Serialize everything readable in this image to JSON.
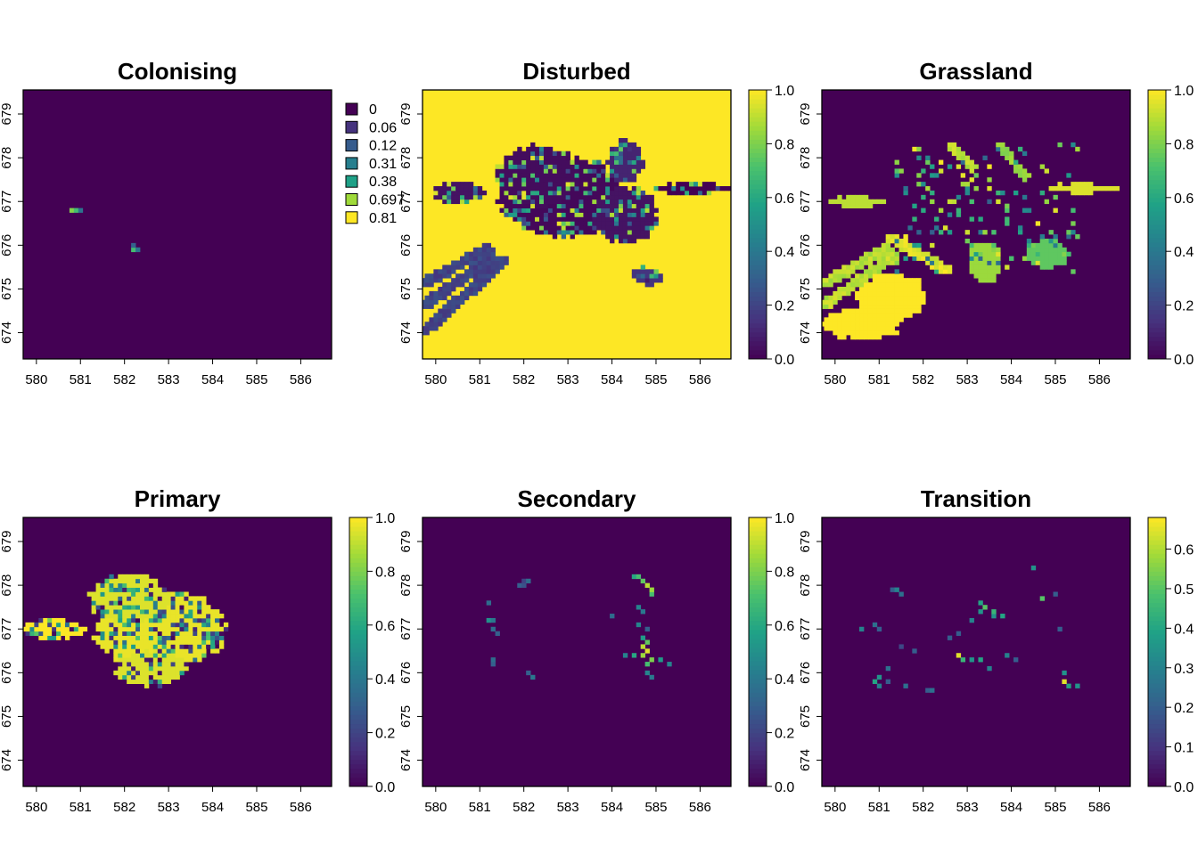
{
  "palette": [
    "#440154",
    "#46337E",
    "#365C8D",
    "#277F8E",
    "#1FA187",
    "#4AC16D",
    "#9FDA3A",
    "#FDE725"
  ],
  "chart_data": [
    {
      "type": "heatmap",
      "title": "Colonising",
      "xlim": [
        579.7,
        586.7
      ],
      "ylim": [
        673.4,
        679.55
      ],
      "xticks": [
        "580",
        "581",
        "582",
        "583",
        "584",
        "585",
        "586"
      ],
      "yticks": [
        "674",
        "675",
        "676",
        "677",
        "678",
        "679"
      ],
      "legend": {
        "kind": "categorical",
        "labels": [
          "0",
          "0.06",
          "0.12",
          "0.31",
          "0.38",
          "0.697",
          "0.81"
        ],
        "colors": [
          "#440154",
          "#46337E",
          "#365C8D",
          "#277F8E",
          "#1FA187",
          "#9FDA3A",
          "#FDE725"
        ]
      },
      "background": 0,
      "cells": [
        [
          580.8,
          676.8,
          0.81
        ],
        [
          580.9,
          676.8,
          0.697
        ],
        [
          581.0,
          676.8,
          0.38
        ],
        [
          582.2,
          676.0,
          0.31
        ],
        [
          582.2,
          675.9,
          0.697
        ],
        [
          582.3,
          675.9,
          0.38
        ]
      ]
    },
    {
      "type": "heatmap",
      "title": "Disturbed",
      "xlim": [
        579.7,
        586.7
      ],
      "ylim": [
        673.4,
        679.55
      ],
      "xticks": [
        "580",
        "581",
        "582",
        "583",
        "584",
        "585",
        "586"
      ],
      "yticks": [
        "674",
        "675",
        "676",
        "677",
        "678",
        "679"
      ],
      "legend": {
        "kind": "continuous",
        "ticks": [
          "0.0",
          "0.2",
          "0.4",
          "0.6",
          "0.8",
          "1.0"
        ],
        "max": 1.0
      },
      "background": 1.0,
      "blobs": [
        {
          "cx": 582.9,
          "cy": 677.1,
          "rx": 1.45,
          "ry": 0.9,
          "v": 0.02
        },
        {
          "cx": 582.3,
          "cy": 677.6,
          "rx": 0.9,
          "ry": 0.7,
          "v": 0.03
        },
        {
          "cx": 584.3,
          "cy": 676.7,
          "rx": 0.7,
          "ry": 0.65,
          "v": 0.05
        },
        {
          "cx": 584.3,
          "cy": 677.9,
          "rx": 0.4,
          "ry": 0.5,
          "v": 0.1
        },
        {
          "cx": 580.5,
          "cy": 677.2,
          "rx": 0.6,
          "ry": 0.25,
          "v": 0.05
        },
        {
          "cx": 585.8,
          "cy": 677.3,
          "rx": 0.9,
          "ry": 0.12,
          "v": 0.0
        },
        {
          "cx": 584.8,
          "cy": 675.3,
          "rx": 0.35,
          "ry": 0.2,
          "v": 0.15
        }
      ],
      "stripes": [
        {
          "x0": 579.7,
          "y0": 675.1,
          "x1": 581.3,
          "y1": 676.0,
          "w": 0.13,
          "v": 0.15
        },
        {
          "x0": 579.7,
          "y0": 674.6,
          "x1": 581.4,
          "y1": 675.8,
          "w": 0.13,
          "v": 0.15
        },
        {
          "x0": 579.7,
          "y0": 674.0,
          "x1": 581.6,
          "y1": 675.7,
          "w": 0.13,
          "v": 0.15
        }
      ],
      "noise": 0.28
    },
    {
      "type": "heatmap",
      "title": "Grassland",
      "xlim": [
        579.7,
        586.7
      ],
      "ylim": [
        673.4,
        679.55
      ],
      "xticks": [
        "580",
        "581",
        "582",
        "583",
        "584",
        "585",
        "586"
      ],
      "yticks": [
        "674",
        "675",
        "676",
        "677",
        "678",
        "679"
      ],
      "legend": {
        "kind": "continuous",
        "ticks": [
          "0.0",
          "0.2",
          "0.4",
          "0.6",
          "0.8",
          "1.0"
        ],
        "max": 1.0
      },
      "background": 0,
      "blobs": [
        {
          "cx": 581.3,
          "cy": 674.8,
          "rx": 0.8,
          "ry": 0.55,
          "v": 1.0
        },
        {
          "cx": 580.6,
          "cy": 674.2,
          "rx": 0.9,
          "ry": 0.35,
          "v": 1.0
        },
        {
          "cx": 583.4,
          "cy": 675.6,
          "rx": 0.35,
          "ry": 0.5,
          "v": 0.85
        },
        {
          "cx": 584.8,
          "cy": 675.8,
          "rx": 0.45,
          "ry": 0.35,
          "v": 0.75
        },
        {
          "cx": 585.6,
          "cy": 677.3,
          "rx": 0.8,
          "ry": 0.1,
          "v": 0.95
        },
        {
          "cx": 580.5,
          "cy": 677.0,
          "rx": 0.6,
          "ry": 0.12,
          "v": 0.9
        }
      ],
      "stripes": [
        {
          "x0": 579.7,
          "y0": 675.1,
          "x1": 581.3,
          "y1": 676.0,
          "w": 0.12,
          "v": 0.85
        },
        {
          "x0": 579.7,
          "y0": 674.6,
          "x1": 581.4,
          "y1": 675.8,
          "w": 0.12,
          "v": 0.85
        },
        {
          "x0": 581.2,
          "y0": 676.2,
          "x1": 582.6,
          "y1": 675.4,
          "w": 0.12,
          "v": 0.9
        },
        {
          "x0": 582.6,
          "y0": 678.3,
          "x1": 583.2,
          "y1": 677.7,
          "w": 0.12,
          "v": 0.85
        },
        {
          "x0": 583.7,
          "y0": 678.3,
          "x1": 584.4,
          "y1": 677.5,
          "w": 0.1,
          "v": 0.8
        }
      ],
      "sparse": 0.12
    },
    {
      "type": "heatmap",
      "title": "Primary",
      "xlim": [
        579.7,
        586.7
      ],
      "ylim": [
        673.4,
        679.55
      ],
      "xticks": [
        "580",
        "581",
        "582",
        "583",
        "584",
        "585",
        "586"
      ],
      "yticks": [
        "674",
        "675",
        "676",
        "677",
        "678",
        "679"
      ],
      "legend": {
        "kind": "continuous",
        "ticks": [
          "0.0",
          "0.2",
          "0.4",
          "0.6",
          "0.8",
          "1.0"
        ],
        "max": 1.0
      },
      "background": 0,
      "blobs": [
        {
          "cx": 582.8,
          "cy": 677.0,
          "rx": 1.5,
          "ry": 0.85,
          "v": 0.97
        },
        {
          "cx": 582.1,
          "cy": 677.7,
          "rx": 0.9,
          "ry": 0.55,
          "v": 0.95
        },
        {
          "cx": 582.6,
          "cy": 676.1,
          "rx": 0.8,
          "ry": 0.4,
          "v": 0.95
        },
        {
          "cx": 580.4,
          "cy": 677.0,
          "rx": 0.7,
          "ry": 0.22,
          "v": 1.0
        }
      ],
      "noise": 0.3
    },
    {
      "type": "heatmap",
      "title": "Secondary",
      "xlim": [
        579.7,
        586.7
      ],
      "ylim": [
        673.4,
        679.55
      ],
      "xticks": [
        "580",
        "581",
        "582",
        "583",
        "584",
        "585",
        "586"
      ],
      "yticks": [
        "674",
        "675",
        "676",
        "677",
        "678",
        "679"
      ],
      "legend": {
        "kind": "continuous",
        "ticks": [
          "0.0",
          "0.2",
          "0.4",
          "0.6",
          "0.8",
          "1.0"
        ],
        "max": 1.0
      },
      "background": 0,
      "cells": [
        [
          581.9,
          678.0,
          0.3
        ],
        [
          582.0,
          678.0,
          0.25
        ],
        [
          582.1,
          678.1,
          0.35
        ],
        [
          582.0,
          678.1,
          0.2
        ],
        [
          581.2,
          677.6,
          0.35
        ],
        [
          581.2,
          677.2,
          0.5
        ],
        [
          581.3,
          677.2,
          0.4
        ],
        [
          581.3,
          677.0,
          0.35
        ],
        [
          581.4,
          676.9,
          0.3
        ],
        [
          581.3,
          676.3,
          0.35
        ],
        [
          581.3,
          676.2,
          0.3
        ],
        [
          582.1,
          676.0,
          0.3
        ],
        [
          582.2,
          675.9,
          0.4
        ],
        [
          584.5,
          678.2,
          0.6
        ],
        [
          584.6,
          678.2,
          0.7
        ],
        [
          584.7,
          678.1,
          0.75
        ],
        [
          584.8,
          678.0,
          0.9
        ],
        [
          584.9,
          677.9,
          0.85
        ],
        [
          584.9,
          677.8,
          0.7
        ],
        [
          584.6,
          677.5,
          0.45
        ],
        [
          584.7,
          677.4,
          0.4
        ],
        [
          584.0,
          677.3,
          0.35
        ],
        [
          584.6,
          677.1,
          0.45
        ],
        [
          584.8,
          677.0,
          0.3
        ],
        [
          584.7,
          676.8,
          0.55
        ],
        [
          584.8,
          676.7,
          0.75
        ],
        [
          584.7,
          676.6,
          0.9
        ],
        [
          584.8,
          676.5,
          0.95
        ],
        [
          584.7,
          676.4,
          0.85
        ],
        [
          584.5,
          676.4,
          0.6
        ],
        [
          584.3,
          676.4,
          0.45
        ],
        [
          584.9,
          676.3,
          0.8
        ],
        [
          585.1,
          676.3,
          0.55
        ],
        [
          585.3,
          676.2,
          0.45
        ],
        [
          584.8,
          676.2,
          0.7
        ],
        [
          584.8,
          676.0,
          0.45
        ],
        [
          584.9,
          675.9,
          0.4
        ]
      ]
    },
    {
      "type": "heatmap",
      "title": "Transition",
      "xlim": [
        579.7,
        586.7
      ],
      "ylim": [
        673.4,
        679.55
      ],
      "xticks": [
        "580",
        "581",
        "582",
        "583",
        "584",
        "585",
        "586"
      ],
      "yticks": [
        "674",
        "675",
        "676",
        "677",
        "678",
        "679"
      ],
      "legend": {
        "kind": "continuous",
        "ticks": [
          "0.0",
          "0.1",
          "0.2",
          "0.3",
          "0.4",
          "0.5",
          "0.6"
        ],
        "max": 0.68
      },
      "background": 0,
      "cells": [
        [
          581.3,
          677.9,
          0.2
        ],
        [
          581.4,
          677.9,
          0.3
        ],
        [
          581.5,
          677.8,
          0.25
        ],
        [
          580.6,
          677.0,
          0.3
        ],
        [
          580.9,
          677.1,
          0.25
        ],
        [
          581.0,
          677.0,
          0.2
        ],
        [
          581.5,
          676.6,
          0.15
        ],
        [
          581.8,
          676.5,
          0.2
        ],
        [
          581.2,
          676.1,
          0.25
        ],
        [
          581.0,
          675.9,
          0.35
        ],
        [
          580.9,
          675.8,
          0.4
        ],
        [
          581.0,
          675.7,
          0.3
        ],
        [
          581.2,
          675.8,
          0.2
        ],
        [
          581.6,
          675.7,
          0.25
        ],
        [
          582.1,
          675.6,
          0.2
        ],
        [
          582.2,
          675.6,
          0.25
        ],
        [
          582.6,
          676.8,
          0.2
        ],
        [
          582.8,
          676.9,
          0.2
        ],
        [
          583.1,
          677.2,
          0.3
        ],
        [
          583.3,
          677.4,
          0.35
        ],
        [
          583.3,
          677.6,
          0.4
        ],
        [
          583.4,
          677.5,
          0.5
        ],
        [
          583.6,
          677.4,
          0.45
        ],
        [
          583.8,
          677.3,
          0.4
        ],
        [
          583.6,
          677.3,
          0.35
        ],
        [
          582.9,
          676.3,
          0.45
        ],
        [
          582.8,
          676.4,
          0.65
        ],
        [
          583.1,
          676.3,
          0.35
        ],
        [
          583.3,
          676.3,
          0.4
        ],
        [
          583.5,
          676.1,
          0.3
        ],
        [
          583.9,
          676.4,
          0.3
        ],
        [
          584.1,
          676.3,
          0.2
        ],
        [
          584.5,
          678.4,
          0.35
        ],
        [
          584.7,
          677.7,
          0.5
        ],
        [
          585.0,
          677.8,
          0.2
        ],
        [
          585.1,
          677.0,
          0.2
        ],
        [
          585.2,
          676.0,
          0.35
        ],
        [
          585.2,
          675.8,
          0.65
        ],
        [
          585.3,
          675.7,
          0.4
        ],
        [
          585.5,
          675.7,
          0.35
        ]
      ]
    }
  ]
}
